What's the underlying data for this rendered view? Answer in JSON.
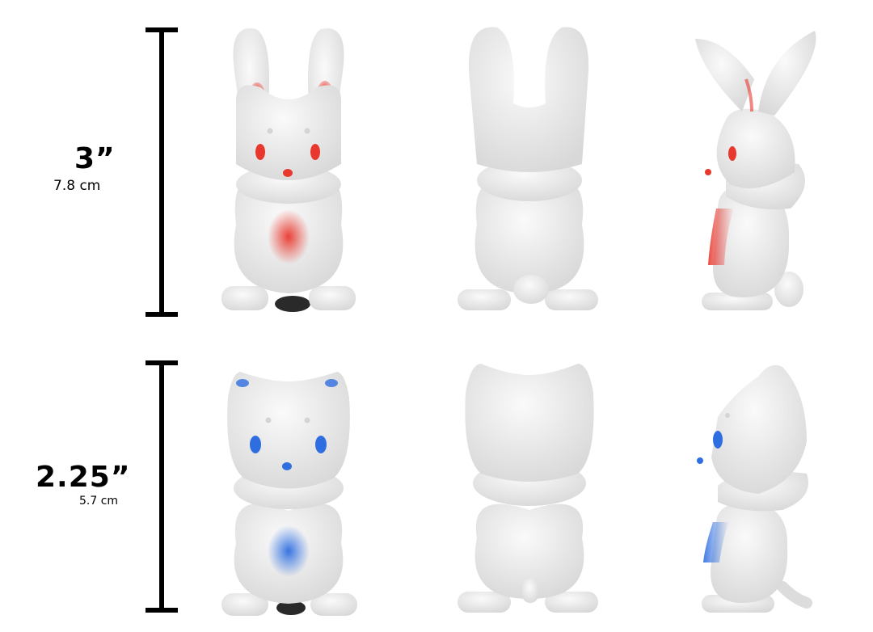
{
  "rows": [
    {
      "character": "bunny",
      "accent_color": "#e8382e",
      "height_in": "3”",
      "height_cm": "7.8 cm",
      "views": [
        "front",
        "back",
        "side"
      ]
    },
    {
      "character": "cat",
      "accent_color": "#2f6ee0",
      "height_in": "2.25”",
      "height_cm": "5.7 cm",
      "views": [
        "front",
        "back",
        "side"
      ]
    }
  ],
  "colors": {
    "body": "#eeeeee",
    "shade": "#d6d6d6",
    "bar": "#000000",
    "base": "#2a2a2a"
  }
}
